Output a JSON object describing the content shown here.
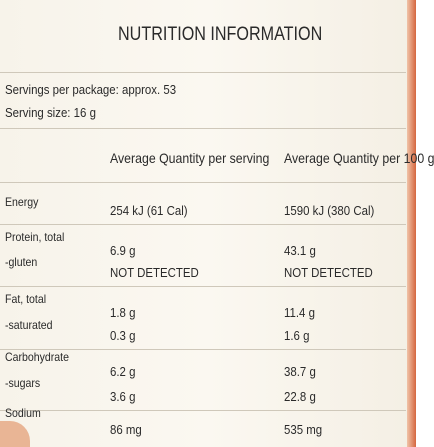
{
  "header": {
    "title": "NUTRITION INFORMATION"
  },
  "servings": {
    "per_package": "Servings per package: approx. 53",
    "size": "Serving size: 16 g"
  },
  "table": {
    "columns": [
      "Average Quantity per serving",
      "Average Quantity per 100 g"
    ],
    "rows": [
      [
        "Energy",
        "254 kJ (61 Cal)",
        "1590 kJ (380 Cal)"
      ],
      [
        "Protein, total",
        "6.9 g",
        "43.1 g"
      ],
      [
        "-gluten",
        "NOT DETECTED",
        "NOT DETECTED"
      ],
      [
        "Fat, total",
        "1.8 g",
        "11.4 g"
      ],
      [
        "-saturated",
        "0.3 g",
        "1.6 g"
      ],
      [
        "Carbohydrate",
        "6.2 g",
        "38.7 g"
      ],
      [
        "-sugars",
        "3.6 g",
        "22.8 g"
      ],
      [
        "Sodium",
        "86 mg",
        "535 mg"
      ]
    ]
  }
}
